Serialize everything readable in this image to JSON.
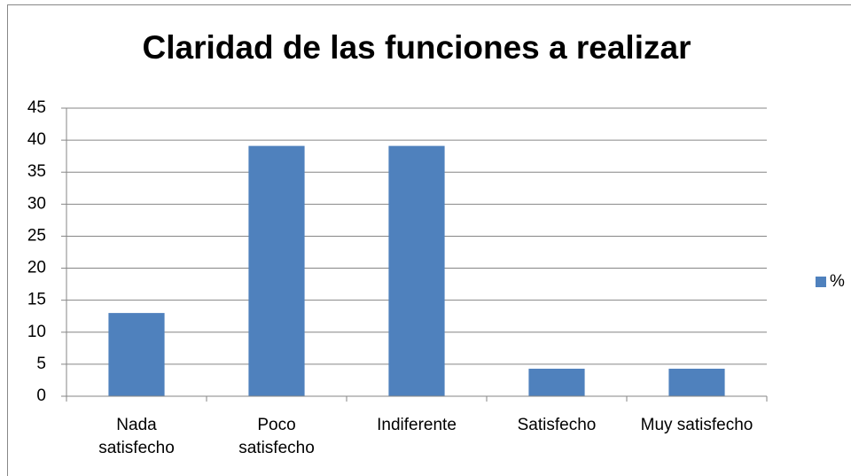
{
  "chart_data": {
    "type": "bar",
    "title": "Claridad de las funciones a realizar",
    "categories": [
      "Nada satisfecho",
      "Poco satisfecho",
      "Indiferente",
      "Satisfecho",
      "Muy satisfecho"
    ],
    "series": [
      {
        "name": "%",
        "color": "#4f81bd",
        "values": [
          13,
          39.1,
          39.1,
          4.3,
          4.3
        ]
      }
    ],
    "ylim": [
      0,
      45
    ],
    "yticks": [
      0,
      5,
      10,
      15,
      20,
      25,
      30,
      35,
      40,
      45
    ],
    "grid": true,
    "legend": "right"
  }
}
